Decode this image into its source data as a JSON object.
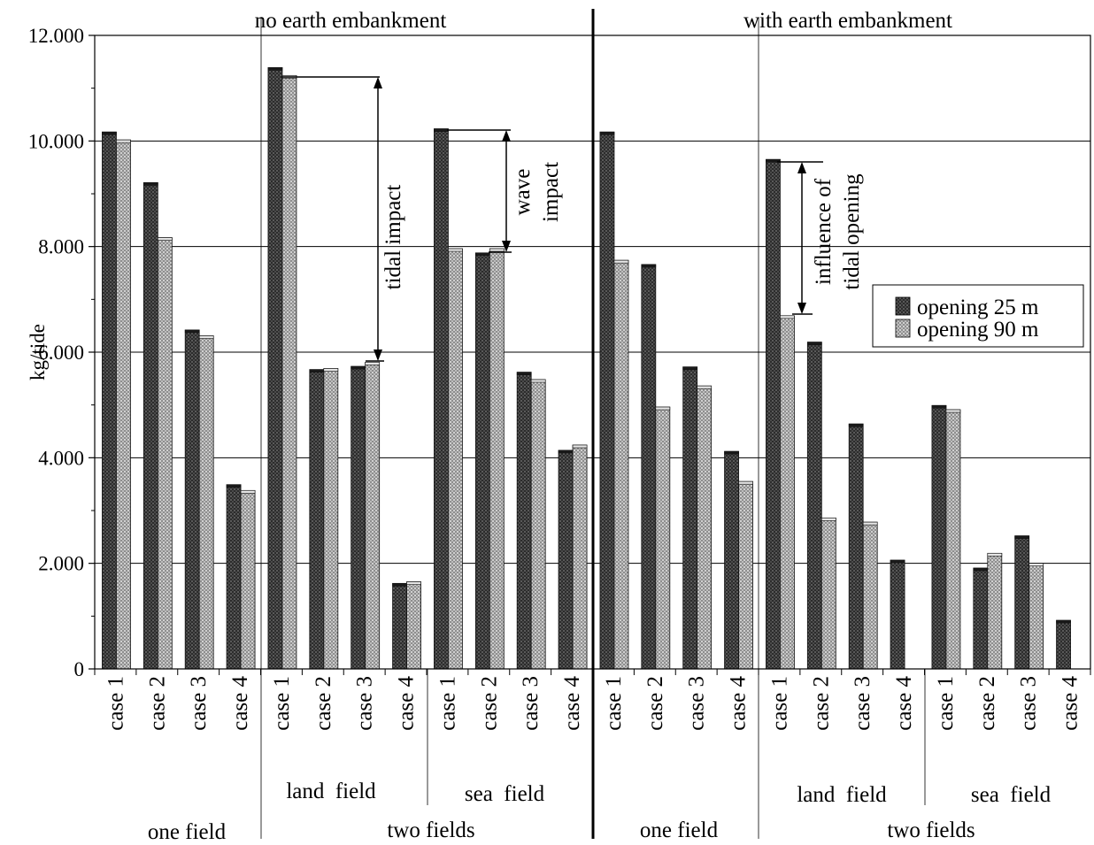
{
  "chart_data": {
    "type": "bar",
    "ylabel": "kg/tide",
    "ylim": [
      0,
      12000
    ],
    "y_ticks": [
      "0",
      "2.000",
      "4.000",
      "6.000",
      "8.000",
      "10.000",
      "12.000"
    ],
    "grid": "horizontal",
    "legend_position": "right",
    "panels": [
      "no earth embankment",
      "with earth embankment"
    ],
    "categories": [
      "case 1",
      "case 2",
      "case 3",
      "case 4",
      "case 1",
      "case 2",
      "case 3",
      "case 4",
      "case 1",
      "case 2",
      "case 3",
      "case 4",
      "case 1",
      "case 2",
      "case 3",
      "case 4",
      "case 1",
      "case 2",
      "case 3",
      "case 4",
      "case 1",
      "case 2",
      "case 3",
      "case 4"
    ],
    "series": [
      {
        "name": "opening 25 m",
        "color": "#333333",
        "values": [
          10170,
          9210,
          6420,
          3490,
          11390,
          5670,
          5730,
          1620,
          10230,
          7880,
          5620,
          4140,
          10170,
          7660,
          5720,
          4120,
          9650,
          6190,
          4640,
          2060,
          4990,
          1910,
          2520,
          920
        ]
      },
      {
        "name": "opening 90 m",
        "color": "#a8a8a8",
        "values": [
          10020,
          8170,
          6310,
          3380,
          11240,
          5690,
          5810,
          1650,
          7960,
          7960,
          5480,
          4240,
          7740,
          4960,
          5360,
          3550,
          6690,
          2860,
          2780,
          null,
          4910,
          2190,
          2000,
          null
        ]
      }
    ],
    "group_labels": {
      "subgroups": [
        "land  field",
        "sea  field",
        "land  field",
        "sea  field"
      ],
      "groups": [
        "one field",
        "two fields",
        "one field",
        "two fields"
      ]
    },
    "annotations": {
      "tidal_impact": "tidal impact",
      "wave_impact_1": "wave",
      "wave_impact_2": "impact",
      "tidal_opening_1": "influence of",
      "tidal_opening_2": "tidal opening"
    }
  }
}
